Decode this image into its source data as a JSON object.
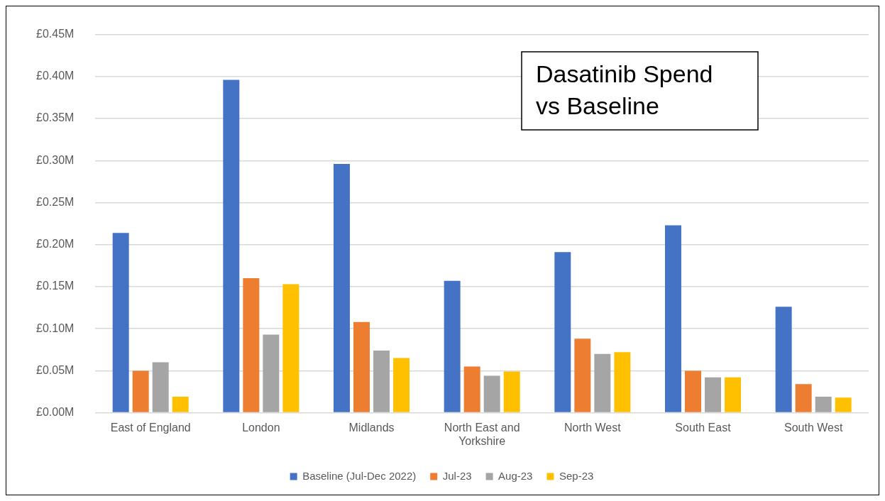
{
  "chart_data": {
    "type": "bar",
    "title": "Dasatinib Spend vs Baseline",
    "categories": [
      "East of England",
      "London",
      "Midlands",
      "North East and Yorkshire",
      "North West",
      "South East",
      "South West"
    ],
    "series": [
      {
        "name": "Baseline (Jul-Dec 2022)",
        "color": "#4472c4",
        "values": [
          0.214,
          0.396,
          0.296,
          0.157,
          0.191,
          0.223,
          0.126
        ]
      },
      {
        "name": "Jul-23",
        "color": "#ed7d31",
        "values": [
          0.05,
          0.16,
          0.108,
          0.055,
          0.088,
          0.05,
          0.034
        ]
      },
      {
        "name": "Aug-23",
        "color": "#a5a5a5",
        "values": [
          0.06,
          0.093,
          0.074,
          0.044,
          0.07,
          0.042,
          0.019
        ]
      },
      {
        "name": "Sep-23",
        "color": "#ffc000",
        "values": [
          0.019,
          0.153,
          0.065,
          0.049,
          0.072,
          0.042,
          0.018
        ]
      }
    ],
    "ylim": [
      0,
      0.45
    ],
    "yticks": [
      {
        "value": 0,
        "label": "£0.00M"
      },
      {
        "value": 0.05,
        "label": "£0.05M"
      },
      {
        "value": 0.1,
        "label": "£0.10M"
      },
      {
        "value": 0.15,
        "label": "£0.15M"
      },
      {
        "value": 0.2,
        "label": "£0.20M"
      },
      {
        "value": 0.25,
        "label": "£0.25M"
      },
      {
        "value": 0.3,
        "label": "£0.30M"
      },
      {
        "value": 0.35,
        "label": "£0.35M"
      },
      {
        "value": 0.4,
        "label": "£0.40M"
      },
      {
        "value": 0.45,
        "label": "£0.45M"
      }
    ],
    "grid": "y",
    "legend": "bottom"
  }
}
